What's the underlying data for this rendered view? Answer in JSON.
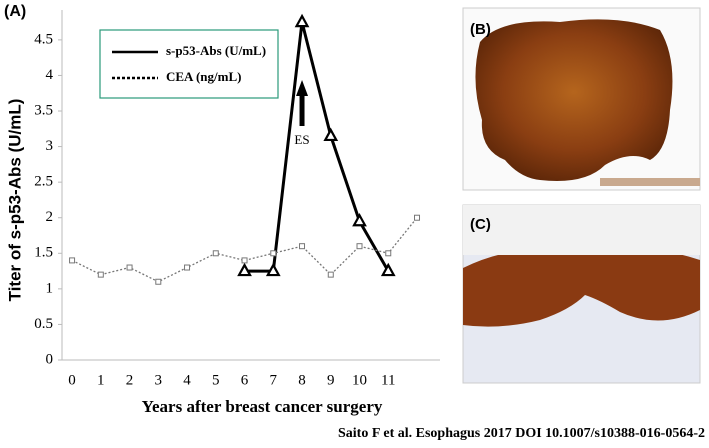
{
  "chart_data": {
    "type": "line",
    "panel_label": "(A)",
    "y_label": "Titer of s-p53-Abs (U/mL)",
    "x_label": "Years after breast cancer surgery",
    "x": [
      0,
      1,
      2,
      3,
      4,
      5,
      6,
      7,
      8,
      9,
      10,
      11,
      12
    ],
    "xlim": [
      -0.35,
      12.8
    ],
    "xticks": [
      0,
      1,
      2,
      3,
      4,
      5,
      6,
      7,
      8,
      9,
      10,
      11
    ],
    "ylim": [
      0,
      4.92
    ],
    "yticks": [
      0,
      0.5,
      1,
      1.5,
      2,
      2.5,
      3,
      3.5,
      4,
      4.5
    ],
    "legend": "upper left",
    "series": [
      {
        "name": "s-p53-Abs (U/mL)",
        "color": "#000000",
        "values": [
          null,
          null,
          null,
          null,
          null,
          null,
          1.25,
          1.25,
          4.75,
          3.15,
          1.95,
          1.25,
          null
        ]
      },
      {
        "name": "CEA (ng/mL)",
        "color": "#777777",
        "values": [
          1.4,
          1.2,
          1.3,
          1.1,
          1.3,
          1.5,
          1.4,
          1.5,
          1.6,
          1.2,
          1.6,
          1.5,
          2.0
        ]
      }
    ],
    "annotation": {
      "text": "ES",
      "x": 8
    }
  },
  "panels": [
    {
      "label": "(B)"
    },
    {
      "label": "(C)"
    }
  ],
  "citation": "Saito F et al. Esophagus 2017 DOI 10.1007/s10388-016-0564-2"
}
